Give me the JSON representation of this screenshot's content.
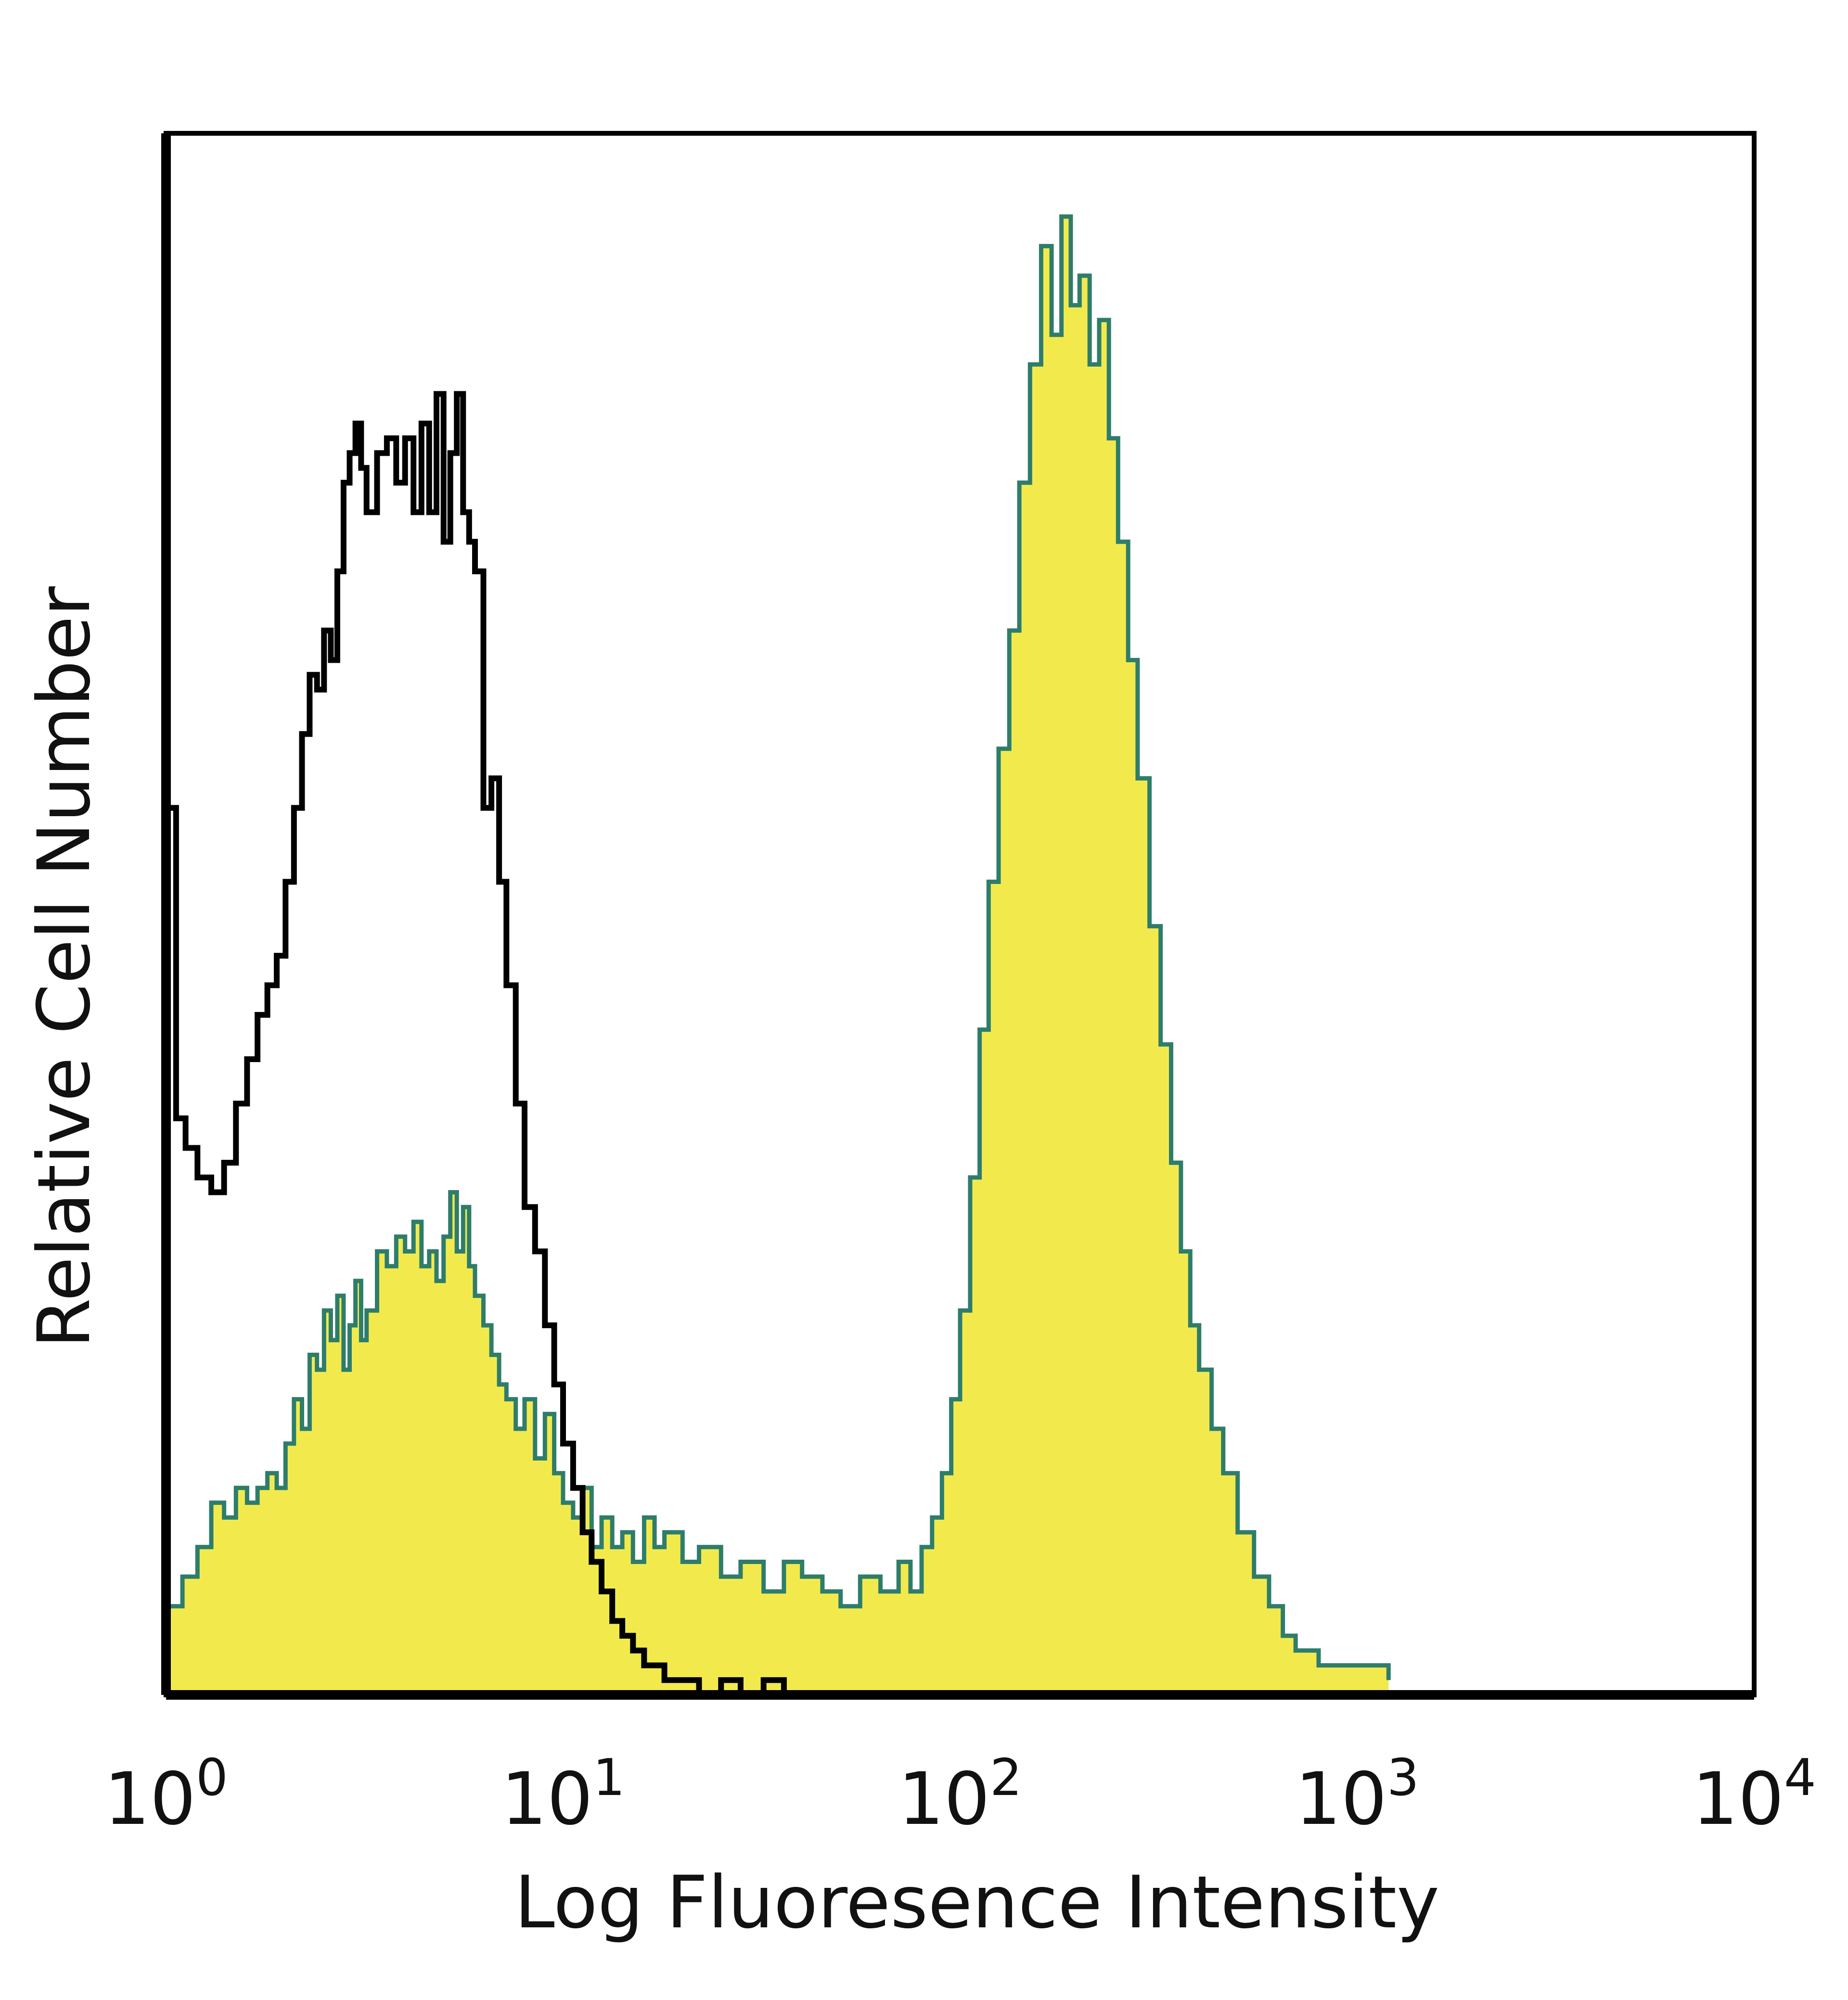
{
  "chart_data": {
    "type": "area",
    "xlabel": "Log Fluoresence Intensity",
    "ylabel": "Relative Cell Number",
    "x_scale": "log",
    "xlim": [
      1,
      10000
    ],
    "ylim": [
      0,
      1
    ],
    "x_ticks": [
      {
        "value": 1,
        "base": "10",
        "exp": "0"
      },
      {
        "value": 10,
        "base": "10",
        "exp": "1"
      },
      {
        "value": 100,
        "base": "10",
        "exp": "2"
      },
      {
        "value": 1000,
        "base": "10",
        "exp": "3"
      },
      {
        "value": 10000,
        "base": "10",
        "exp": "4"
      }
    ],
    "grid": false,
    "legend": "none",
    "series": [
      {
        "style": "outline",
        "color": "#000000",
        "x": [
          1.0,
          1.06,
          1.12,
          1.2,
          1.3,
          1.4,
          1.5,
          1.6,
          1.7,
          1.8,
          1.9,
          2.0,
          2.1,
          2.2,
          2.3,
          2.4,
          2.5,
          2.6,
          2.7,
          2.8,
          2.9,
          3.0,
          3.1,
          3.2,
          3.4,
          3.6,
          3.8,
          4.0,
          4.2,
          4.4,
          4.6,
          4.8,
          5.0,
          5.2,
          5.4,
          5.6,
          5.8,
          6.0,
          6.3,
          6.6,
          6.9,
          7.2,
          7.6,
          8.0,
          8.5,
          9.0,
          9.5,
          10.0,
          10.6,
          11.2,
          11.8,
          12.5,
          13.3,
          14.1,
          15.0,
          16.0,
          17.0,
          18.0,
          20.0,
          22.0,
          25.0,
          28.0,
          32.0,
          36.0,
          40.0
        ],
        "y": [
          0.6,
          0.39,
          0.37,
          0.35,
          0.34,
          0.36,
          0.4,
          0.43,
          0.46,
          0.48,
          0.5,
          0.55,
          0.6,
          0.65,
          0.69,
          0.68,
          0.72,
          0.7,
          0.76,
          0.82,
          0.84,
          0.86,
          0.83,
          0.8,
          0.84,
          0.85,
          0.82,
          0.85,
          0.8,
          0.86,
          0.8,
          0.88,
          0.78,
          0.84,
          0.88,
          0.8,
          0.78,
          0.76,
          0.6,
          0.62,
          0.55,
          0.48,
          0.4,
          0.33,
          0.3,
          0.25,
          0.21,
          0.17,
          0.14,
          0.11,
          0.09,
          0.07,
          0.05,
          0.04,
          0.03,
          0.02,
          0.02,
          0.01,
          0.01,
          0.0,
          0.01,
          0.0,
          0.01,
          0.0,
          0.0
        ]
      },
      {
        "style": "filled",
        "color": "#2e7d6b",
        "fill": "#f2ea4d",
        "x": [
          1.0,
          1.1,
          1.2,
          1.3,
          1.4,
          1.5,
          1.6,
          1.7,
          1.8,
          1.9,
          2.0,
          2.1,
          2.2,
          2.3,
          2.4,
          2.5,
          2.6,
          2.7,
          2.8,
          2.9,
          3.0,
          3.1,
          3.2,
          3.4,
          3.6,
          3.8,
          4.0,
          4.2,
          4.4,
          4.6,
          4.8,
          5.0,
          5.2,
          5.4,
          5.6,
          5.8,
          6.0,
          6.3,
          6.6,
          6.9,
          7.2,
          7.6,
          8.0,
          8.5,
          9.0,
          9.5,
          10.0,
          10.6,
          11.2,
          11.8,
          12.5,
          13.3,
          14.1,
          15.0,
          16.0,
          17.0,
          18.0,
          20.0,
          22.0,
          25.0,
          28.0,
          32.0,
          36.0,
          40.0,
          45.0,
          50.0,
          56.0,
          63.0,
          70.0,
          75.0,
          80.0,
          85.0,
          90.0,
          95.0,
          100.0,
          106.0,
          112.0,
          118.0,
          125.0,
          133.0,
          141.0,
          150.0,
          160.0,
          170.0,
          180.0,
          190.0,
          200.0,
          212.0,
          224.0,
          237.0,
          250.0,
          265.0,
          280.0,
          300.0,
          320.0,
          340.0,
          360.0,
          380.0,
          400.0,
          430.0,
          460.0,
          500.0,
          550.0,
          600.0,
          650.0,
          700.0,
          750.0,
          800.0,
          900.0,
          1000.0,
          1100.0,
          1200.0
        ],
        "y": [
          0.06,
          0.08,
          0.1,
          0.13,
          0.12,
          0.14,
          0.13,
          0.14,
          0.15,
          0.14,
          0.17,
          0.2,
          0.18,
          0.23,
          0.22,
          0.26,
          0.24,
          0.27,
          0.22,
          0.25,
          0.28,
          0.24,
          0.26,
          0.3,
          0.29,
          0.31,
          0.3,
          0.32,
          0.29,
          0.3,
          0.28,
          0.31,
          0.34,
          0.3,
          0.33,
          0.29,
          0.27,
          0.25,
          0.23,
          0.21,
          0.2,
          0.18,
          0.2,
          0.16,
          0.19,
          0.15,
          0.13,
          0.12,
          0.14,
          0.1,
          0.12,
          0.1,
          0.11,
          0.09,
          0.12,
          0.1,
          0.11,
          0.09,
          0.1,
          0.08,
          0.09,
          0.07,
          0.09,
          0.08,
          0.07,
          0.06,
          0.08,
          0.07,
          0.09,
          0.07,
          0.1,
          0.12,
          0.15,
          0.2,
          0.26,
          0.35,
          0.45,
          0.55,
          0.64,
          0.72,
          0.82,
          0.9,
          0.98,
          0.92,
          1.0,
          0.94,
          0.96,
          0.9,
          0.93,
          0.85,
          0.78,
          0.7,
          0.62,
          0.52,
          0.44,
          0.36,
          0.3,
          0.25,
          0.22,
          0.18,
          0.15,
          0.11,
          0.08,
          0.06,
          0.04,
          0.03,
          0.03,
          0.02,
          0.02,
          0.02,
          0.02,
          0.01
        ]
      }
    ]
  }
}
